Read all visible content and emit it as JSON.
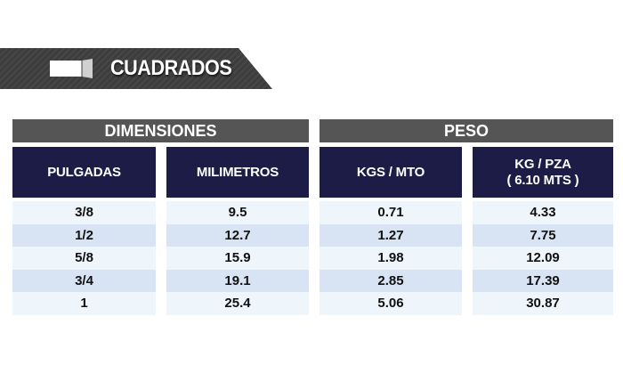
{
  "banner": {
    "title": "CUADRADOS",
    "icon": "square-bar-icon"
  },
  "groups": {
    "dimensions": "DIMENSIONES",
    "weight": "PESO"
  },
  "columns": [
    {
      "line1": "PULGADAS",
      "line2": "",
      "values": [
        "3/8",
        "1/2",
        "5/8",
        "3/4",
        "1"
      ]
    },
    {
      "line1": "MILIMETROS",
      "line2": "",
      "values": [
        "9.5",
        "12.7",
        "15.9",
        "19.1",
        "25.4"
      ]
    },
    {
      "line1": "KGS / MTO",
      "line2": "",
      "values": [
        "0.71",
        "1.27",
        "1.98",
        "2.85",
        "5.06"
      ]
    },
    {
      "line1": "KG / PZA",
      "line2": "( 6.10 MTS )",
      "values": [
        "4.33",
        "7.75",
        "12.09",
        "17.39",
        "30.87"
      ]
    }
  ],
  "colors": {
    "header_navy": "#1c1c47",
    "group_gray": "#555555",
    "row_light": "#eef6fb",
    "row_dark": "#d8e4f3"
  }
}
